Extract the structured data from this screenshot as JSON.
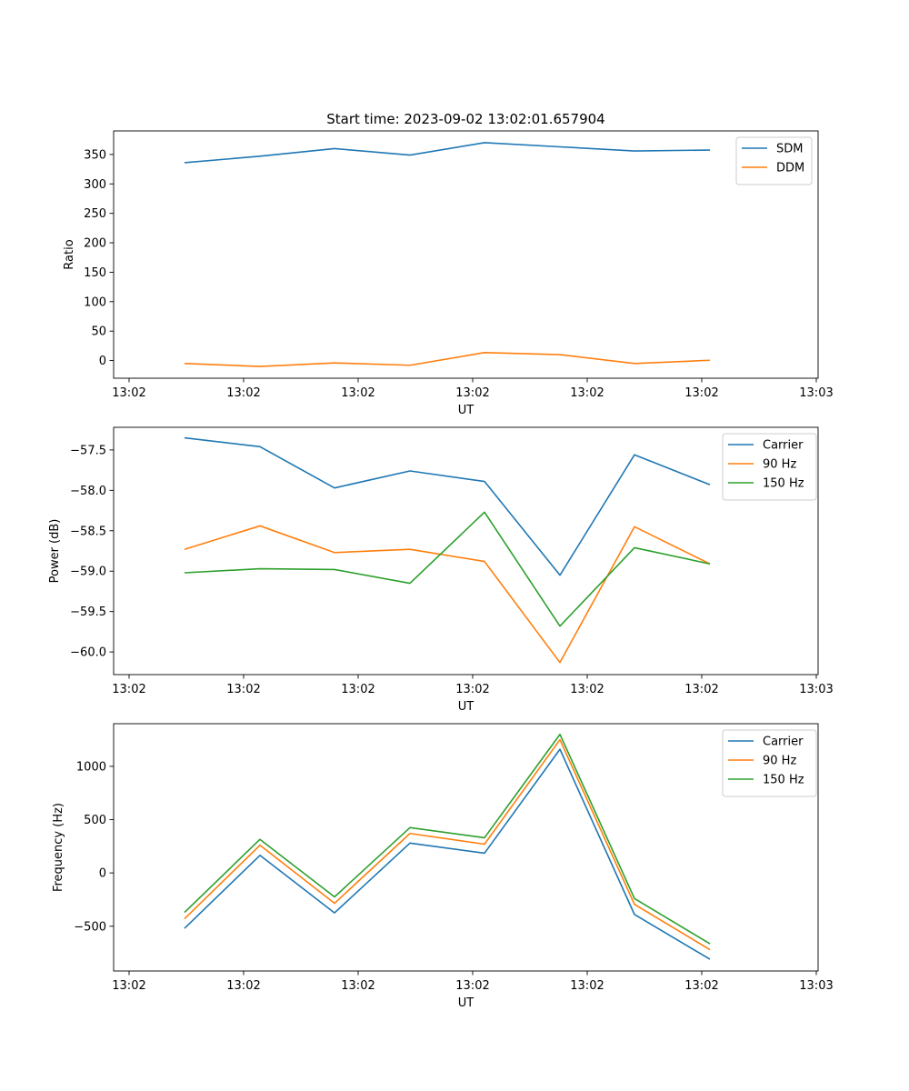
{
  "title": "Start time: 2023-09-02 13:02:01.657904",
  "x_tick_labels": [
    "13:02",
    "13:02",
    "13:02",
    "13:02",
    "13:02",
    "13:02",
    "13:03"
  ],
  "chart_data": [
    {
      "type": "line",
      "title": "Start time: 2023-09-02 13:02:01.657904",
      "xlabel": "UT",
      "ylabel": "Ratio",
      "x_tick_labels": [
        "13:02",
        "13:02",
        "13:02",
        "13:02",
        "13:02",
        "13:02",
        "13:03"
      ],
      "ylim": [
        -30,
        390
      ],
      "yticks": [
        0,
        50,
        100,
        150,
        200,
        250,
        300,
        350
      ],
      "legend_position": "upper right",
      "series": [
        {
          "name": "SDM",
          "color": "#1f77b4",
          "values": [
            336,
            347,
            360,
            349,
            370,
            363,
            356,
            357.5
          ]
        },
        {
          "name": "DDM",
          "color": "#ff7f0e",
          "values": [
            -5,
            -10,
            -4,
            -8,
            13.5,
            10,
            -5,
            0.5
          ]
        }
      ]
    },
    {
      "type": "line",
      "xlabel": "UT",
      "ylabel": "Power (dB)",
      "x_tick_labels": [
        "13:02",
        "13:02",
        "13:02",
        "13:02",
        "13:02",
        "13:02",
        "13:03"
      ],
      "ylim": [
        -60.28,
        -57.22
      ],
      "yticks": [
        -60.0,
        -59.5,
        -59.0,
        -58.5,
        -58.0,
        -57.5
      ],
      "legend_position": "upper right",
      "series": [
        {
          "name": "Carrier",
          "color": "#1f77b4",
          "values": [
            -57.35,
            -57.46,
            -57.97,
            -57.76,
            -57.89,
            -59.05,
            -57.56,
            -57.93
          ]
        },
        {
          "name": "90 Hz",
          "color": "#ff7f0e",
          "values": [
            -58.73,
            -58.44,
            -58.77,
            -58.73,
            -58.88,
            -60.13,
            -58.45,
            -58.91
          ]
        },
        {
          "name": "150 Hz",
          "color": "#2ca02c",
          "values": [
            -59.02,
            -58.97,
            -58.98,
            -59.15,
            -58.27,
            -59.68,
            -58.71,
            -58.91
          ]
        }
      ]
    },
    {
      "type": "line",
      "xlabel": "UT",
      "ylabel": "Frequency (Hz)",
      "x_tick_labels": [
        "13:02",
        "13:02",
        "13:02",
        "13:02",
        "13:02",
        "13:02",
        "13:03"
      ],
      "ylim": [
        -920,
        1400
      ],
      "yticks": [
        -500,
        0,
        500,
        1000
      ],
      "legend_position": "upper right",
      "series": [
        {
          "name": "Carrier",
          "color": "#1f77b4",
          "values": [
            -520,
            165,
            -375,
            280,
            185,
            1160,
            -390,
            -810
          ]
        },
        {
          "name": "90 Hz",
          "color": "#ff7f0e",
          "values": [
            -430,
            260,
            -285,
            370,
            270,
            1250,
            -295,
            -720
          ]
        },
        {
          "name": "150 Hz",
          "color": "#2ca02c",
          "values": [
            -370,
            315,
            -225,
            425,
            330,
            1300,
            -240,
            -665
          ]
        }
      ]
    }
  ]
}
